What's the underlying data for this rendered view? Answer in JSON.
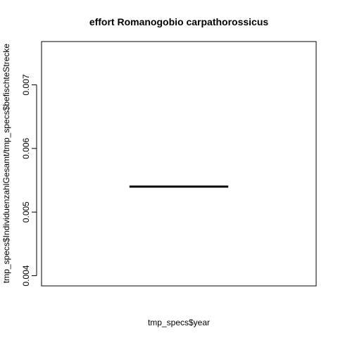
{
  "chart_data": {
    "type": "line",
    "title": "effort Romanogobio carpathorossicus",
    "xlabel": "tmp_specs$year",
    "ylabel": "tmp_specs$IndividuenzahlGesamt/tmp_specs$befischteStrecke",
    "ylim": [
      0.00384,
      0.00768
    ],
    "yticks": [
      0.004,
      0.005,
      0.006,
      0.007
    ],
    "ytick_labels": [
      "0.004",
      "0.005",
      "0.006",
      "0.007"
    ],
    "xlim": [
      0,
      1
    ],
    "grid": false,
    "series": [
      {
        "x": [
          0.32,
          0.68
        ],
        "y": [
          0.0054,
          0.0054
        ]
      }
    ],
    "line_color": "#000000"
  }
}
